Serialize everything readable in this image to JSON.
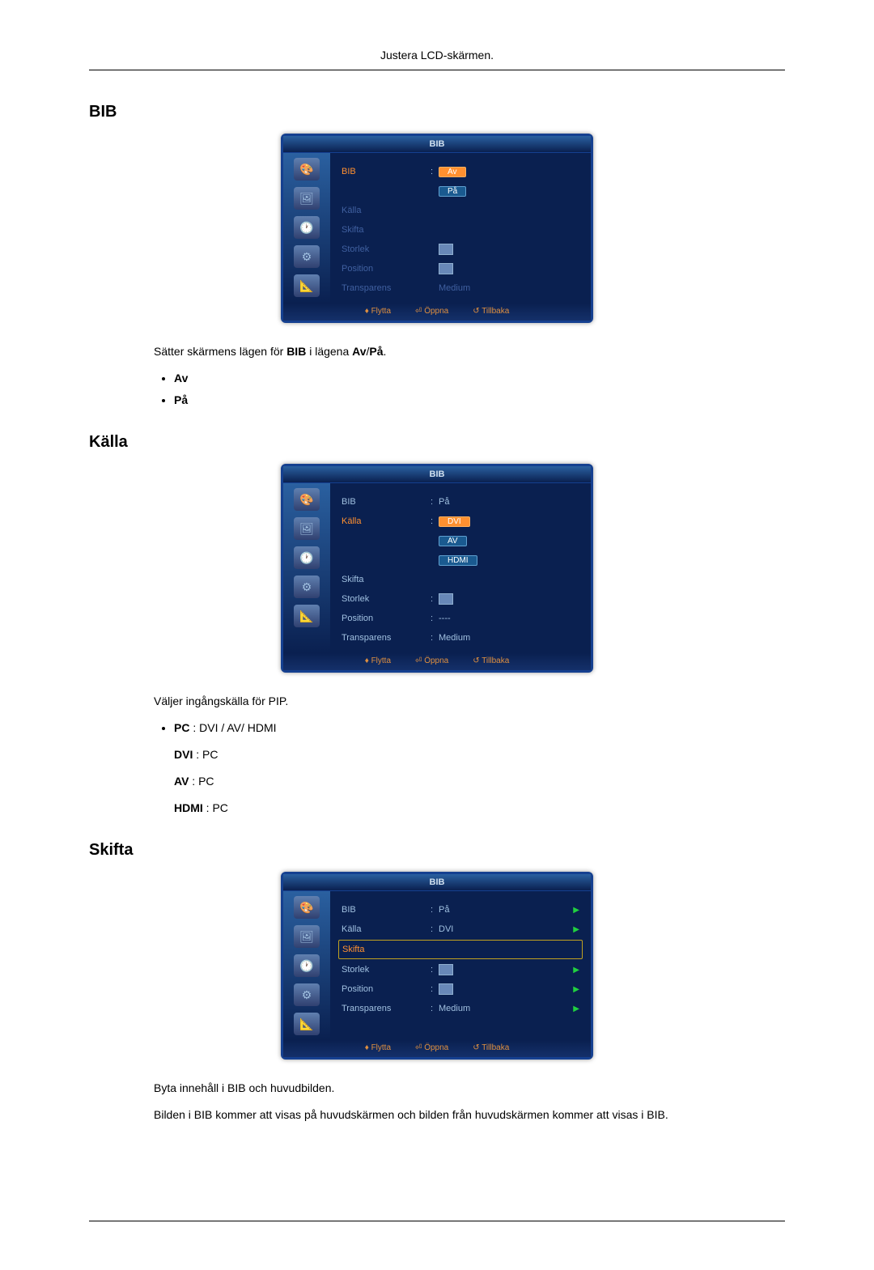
{
  "header": "Justera LCD-skärmen.",
  "sections": {
    "bib": {
      "title": "BIB",
      "osd": {
        "title": "BIB",
        "rows": [
          {
            "label": "BIB",
            "colon": ":",
            "val_type": "dropdown",
            "options": [
              "Av",
              "På"
            ],
            "sel": 0,
            "hl_label": true,
            "dim": false
          },
          {
            "label": "Källa",
            "colon": "",
            "val_type": "none",
            "dim": true
          },
          {
            "label": "Skifta",
            "colon": "",
            "val_type": "none",
            "dim": true
          },
          {
            "label": "Storlek",
            "colon": "",
            "val_type": "thumb",
            "dim": true
          },
          {
            "label": "Position",
            "colon": "",
            "val_type": "thumb",
            "dim": true
          },
          {
            "label": "Transparens",
            "colon": "",
            "val_type": "text",
            "value": "Medium",
            "dim": true
          }
        ],
        "footer": [
          "♦ Flytta",
          "⏎ Öppna",
          "↺ Tillbaka"
        ]
      },
      "desc": {
        "pre": "Sätter skärmens lägen för ",
        "b1": "BIB",
        "mid": " i lägena ",
        "b2": "Av",
        "slash": "/",
        "b3": "På",
        "post": "."
      },
      "bullets": [
        "Av",
        "På"
      ]
    },
    "kalla": {
      "title": "Källa",
      "osd": {
        "title": "BIB",
        "rows": [
          {
            "label": "BIB",
            "colon": ":",
            "val_type": "text",
            "value": "På"
          },
          {
            "label": "Källa",
            "colon": ":",
            "val_type": "dropdown3",
            "options": [
              "DVI",
              "AV",
              "HDMI"
            ],
            "sel": 0,
            "hl_label": true
          },
          {
            "label": "Skifta",
            "colon": "",
            "val_type": "none"
          },
          {
            "label": "Storlek",
            "colon": ":",
            "val_type": "thumb"
          },
          {
            "label": "Position",
            "colon": ":",
            "val_type": "text",
            "value": "----"
          },
          {
            "label": "Transparens",
            "colon": ":",
            "val_type": "text",
            "value": "Medium"
          }
        ],
        "footer": [
          "♦ Flytta",
          "⏎ Öppna",
          "↺ Tillbaka"
        ]
      },
      "desc": "Väljer ingångskälla för PIP.",
      "bullets": [
        {
          "b": "PC",
          "t": " : DVI / AV/ HDMI"
        },
        {
          "b": "DVI",
          "t": " : PC"
        },
        {
          "b": "AV",
          "t": " : PC"
        },
        {
          "b": "HDMI",
          "t": " : PC"
        }
      ]
    },
    "skifta": {
      "title": "Skifta",
      "osd": {
        "title": "BIB",
        "rows": [
          {
            "label": "BIB",
            "colon": ":",
            "val_type": "text",
            "value": "På",
            "arrow": true
          },
          {
            "label": "Källa",
            "colon": ":",
            "val_type": "text",
            "value": "DVI",
            "arrow": true
          },
          {
            "label": "Skifta",
            "colon": "",
            "val_type": "none",
            "boxed": true,
            "hl_label": true
          },
          {
            "label": "Storlek",
            "colon": ":",
            "val_type": "thumb",
            "arrow": true
          },
          {
            "label": "Position",
            "colon": ":",
            "val_type": "thumb",
            "arrow": true
          },
          {
            "label": "Transparens",
            "colon": ":",
            "val_type": "text",
            "value": "Medium",
            "arrow": true
          }
        ],
        "footer": [
          "♦ Flytta",
          "⏎ Öppna",
          "↺ Tillbaka"
        ]
      },
      "desc1": "Byta innehåll i BIB och huvudbilden.",
      "desc2": "Bilden i BIB kommer att visas på huvudskärmen och bilden från huvudskärmen kommer att visas i BIB."
    }
  },
  "sidebar_icons": [
    "🎨",
    "🖼",
    "🕐",
    "⚙",
    "📐"
  ]
}
